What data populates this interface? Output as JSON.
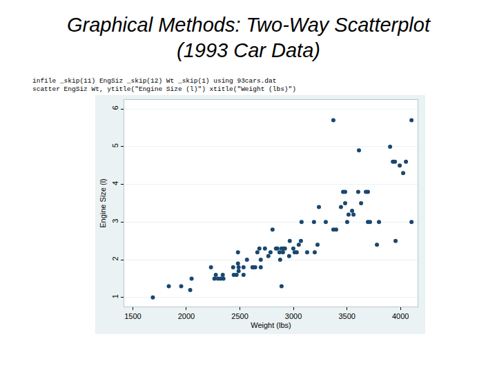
{
  "chart_data": {
    "type": "scatter",
    "title": "Graphical Methods:  Two-Way Scatterplot\n(1993 Car Data)",
    "annotations": [
      "infile _skip(11) EngSiz _skip(12) Wt _skip(1) using 93cars.dat",
      "scatter EngSiz Wt, ytitle(\"Engine Size (l)\") xtitle(\"Weight (lbs)\")"
    ],
    "xlabel": "Weight (lbs)",
    "ylabel": "Engine Size (l)",
    "x": [
      1687,
      1836,
      1952,
      2036,
      2049,
      2230,
      2262,
      2275,
      2295,
      2320,
      2340,
      2346,
      2437,
      2443,
      2469,
      2482,
      2482,
      2488,
      2488,
      2534,
      2534,
      2566,
      2618,
      2624,
      2643,
      2663,
      2682,
      2695,
      2695,
      2734,
      2766,
      2786,
      2805,
      2837,
      2850,
      2870,
      2876,
      2889,
      2889,
      2902,
      2908,
      2921,
      2960,
      2966,
      2999,
      3012,
      3031,
      3050,
      3070,
      3076,
      3128,
      3192,
      3199,
      3225,
      3238,
      3302,
      3373,
      3373,
      3399,
      3444,
      3464,
      3483,
      3483,
      3502,
      3515,
      3548,
      3561,
      3605,
      3612,
      3632,
      3677,
      3696,
      3696,
      3715,
      3780,
      3799,
      3903,
      3929,
      3948,
      3954,
      3993,
      4025,
      4051,
      4103,
      4103
    ],
    "values": [
      1.0,
      1.3,
      1.3,
      1.2,
      1.5,
      1.8,
      1.5,
      1.6,
      1.5,
      1.5,
      1.6,
      1.5,
      1.8,
      1.6,
      1.6,
      1.9,
      2.2,
      1.8,
      1.7,
      1.8,
      1.6,
      2.0,
      1.8,
      1.8,
      1.8,
      2.2,
      2.3,
      2.0,
      1.8,
      2.3,
      2.1,
      2.2,
      2.8,
      2.3,
      2.3,
      2.2,
      2.0,
      1.3,
      2.3,
      2.2,
      2.3,
      2.3,
      2.1,
      2.5,
      2.3,
      2.2,
      2.2,
      2.4,
      2.5,
      3.0,
      2.2,
      3.0,
      2.2,
      2.4,
      3.4,
      3.0,
      5.7,
      2.8,
      2.8,
      3.4,
      3.8,
      3.8,
      3.5,
      3.0,
      3.2,
      3.3,
      3.2,
      3.8,
      4.9,
      3.5,
      3.8,
      3.8,
      3.0,
      3.0,
      2.4,
      3.0,
      5.0,
      4.6,
      4.6,
      2.5,
      4.5,
      4.3,
      4.6,
      5.7,
      3.0
    ],
    "color": "#1a476f",
    "marker": "circle",
    "xlim": [
      1420,
      4160
    ],
    "ylim": [
      0.76,
      6.24
    ],
    "xticks": [
      1500,
      2000,
      2500,
      3000,
      3500,
      4000
    ],
    "yticks": [
      1,
      2,
      3,
      4,
      5,
      6
    ],
    "grid": true
  }
}
